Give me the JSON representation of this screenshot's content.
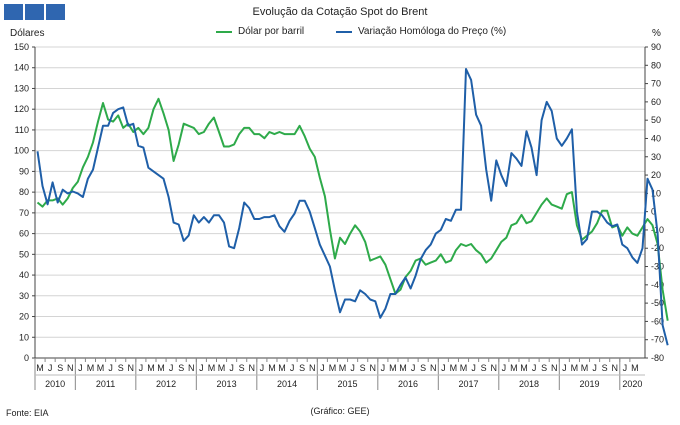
{
  "logo": "brand-logo",
  "chart_data": {
    "type": "line",
    "title": "Evolução da Cotação Spot do Brent",
    "ylabel": "Dólares",
    "y2label": "%",
    "ylim": [
      0,
      150
    ],
    "y2lim": [
      -80,
      90
    ],
    "yticks": [
      0,
      10,
      20,
      30,
      40,
      50,
      60,
      70,
      80,
      90,
      100,
      110,
      120,
      130,
      140,
      150
    ],
    "y2ticks": [
      -80,
      -70,
      -60,
      -50,
      -40,
      -30,
      -20,
      -10,
      0,
      10,
      20,
      30,
      40,
      50,
      60,
      70,
      80,
      90
    ],
    "month_labels": [
      "M",
      "J",
      "S",
      "N",
      "J",
      "M",
      "M",
      "J",
      "S",
      "N",
      "J",
      "M",
      "M",
      "J",
      "S",
      "N",
      "J",
      "M",
      "M",
      "J",
      "S",
      "N",
      "J",
      "M",
      "M",
      "J",
      "S",
      "N",
      "J",
      "M",
      "M",
      "J",
      "S",
      "N",
      "J",
      "M",
      "M",
      "J",
      "S",
      "N",
      "J",
      "M",
      "M",
      "J",
      "S",
      "N",
      "J",
      "M",
      "M",
      "J",
      "S",
      "N",
      "J",
      "M",
      "M",
      "J",
      "S",
      "N",
      "J",
      "M"
    ],
    "years": [
      "2010",
      "2011",
      "2012",
      "2013",
      "2014",
      "2015",
      "2016",
      "2017",
      "2018",
      "2019",
      "2020"
    ],
    "grid": true,
    "legend_position": "top-center",
    "x_start": "2010-03",
    "series": [
      {
        "name": "Dólar por barril",
        "color": "#2eaa4a",
        "axis": "left",
        "values": [
          75,
          73,
          76,
          76,
          77,
          74,
          77,
          82,
          85,
          92,
          97,
          104,
          114,
          123,
          115,
          114,
          117,
          111,
          113,
          109,
          111,
          108,
          111,
          120,
          125,
          118,
          110,
          95,
          103,
          113,
          112,
          111,
          108,
          109,
          113,
          116,
          109,
          102,
          102,
          103,
          108,
          111,
          111,
          108,
          108,
          106,
          109,
          108,
          109,
          108,
          108,
          108,
          112,
          107,
          101,
          97,
          87,
          78,
          62,
          48,
          58,
          55,
          60,
          64,
          61,
          56,
          47,
          48,
          49,
          45,
          38,
          31,
          33,
          39,
          42,
          47,
          48,
          45,
          46,
          47,
          50,
          46,
          47,
          52,
          55,
          54,
          55,
          52,
          50,
          46,
          48,
          52,
          56,
          58,
          64,
          65,
          69,
          65,
          66,
          70,
          74,
          77,
          74,
          73,
          72,
          79,
          80,
          64,
          57,
          59,
          61,
          65,
          71,
          71,
          63,
          64,
          59,
          63,
          60,
          59,
          63,
          67,
          64,
          55,
          33,
          18
        ]
      },
      {
        "name": "Variação Homóloga do Preço (%)",
        "color": "#1f5fa8",
        "axis": "right",
        "values": [
          33,
          14,
          4,
          16,
          5,
          12,
          10,
          11,
          10,
          8,
          18,
          23,
          35,
          47,
          47,
          54,
          56,
          57,
          47,
          48,
          36,
          35,
          24,
          22,
          20,
          18,
          8,
          -6,
          -7,
          -16,
          -13,
          -2,
          -6,
          -3,
          -6,
          -2,
          -2,
          -6,
          -19,
          -20,
          -9,
          5,
          2,
          -4,
          -4,
          -3,
          -3,
          -2,
          -8,
          -11,
          -5,
          -1,
          6,
          6,
          0,
          -9,
          -18,
          -24,
          -30,
          -43,
          -55,
          -48,
          -48,
          -49,
          -43,
          -45,
          -48,
          -49,
          -58,
          -53,
          -45,
          -45,
          -40,
          -36,
          -42,
          -35,
          -26,
          -21,
          -18,
          -12,
          -10,
          -4,
          -5,
          1,
          1,
          78,
          72,
          53,
          47,
          23,
          6,
          28,
          20,
          14,
          32,
          29,
          25,
          44,
          35,
          20,
          50,
          60,
          55,
          40,
          36,
          40,
          45,
          0,
          -18,
          -15,
          0,
          0,
          -2,
          -6,
          -8,
          -7,
          -18,
          -20,
          -25,
          -28,
          -20,
          18,
          12,
          -12,
          -62,
          -73
        ]
      }
    ]
  },
  "source": "Fonte: EIA",
  "credit": "(Gráfico: GEE)"
}
